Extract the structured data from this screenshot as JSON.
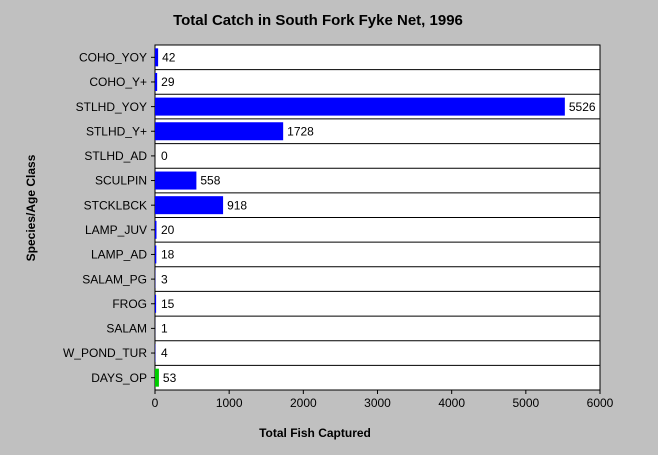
{
  "chart_data": {
    "type": "hbar",
    "title": "Total Catch in South Fork Fyke Net, 1996",
    "x_label": "Total Fish Captured",
    "y_label": "Species/Age Class",
    "categories": [
      "COHO_YOY",
      "COHO_Y+",
      "STLHD_YOY",
      "STLHD_Y+",
      "STLHD_AD",
      "SCULPIN",
      "STCKLBCK",
      "LAMP_JUV",
      "LAMP_AD",
      "SALAM_PG",
      "FROG",
      "SALAM",
      "W_POND_TUR",
      "DAYS_OP"
    ],
    "values": [
      42,
      29,
      5526,
      1728,
      0,
      558,
      918,
      20,
      18,
      3,
      15,
      1,
      4,
      53
    ],
    "colors": [
      "#0000ff",
      "#0000ff",
      "#0000ff",
      "#0000ff",
      "#0000ff",
      "#0000ff",
      "#0000ff",
      "#0000ff",
      "#0000ff",
      "#0000ff",
      "#0000ff",
      "#0000ff",
      "#0000ff",
      "#00cc00"
    ],
    "xlim": [
      0,
      6000
    ],
    "xticks": [
      0,
      1000,
      2000,
      3000,
      4000,
      5000,
      6000
    ]
  }
}
